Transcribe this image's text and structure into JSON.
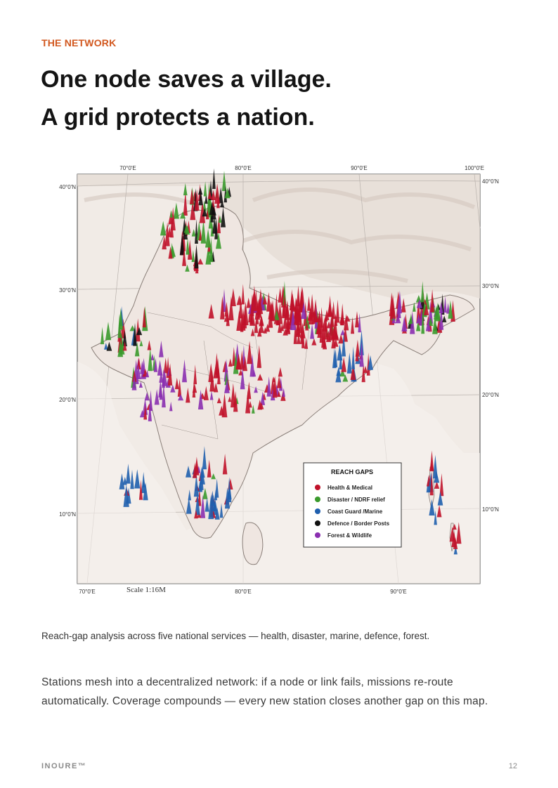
{
  "header": {
    "eyebrow": "THE NETWORK",
    "headline_line1": "One node saves a village.",
    "headline_line2": "A grid protects a nation."
  },
  "map": {
    "top_longitudes": [
      "70°0'E",
      "80°0'E",
      "90°0'E",
      "100°0'E"
    ],
    "bottom_longitudes": [
      "70°0'E",
      "80°0'E",
      "90°0'E"
    ],
    "left_latitudes": [
      "40°0'N",
      "30°0'N",
      "20°0'N",
      "10°0'N"
    ],
    "right_latitudes": [
      "40°0'N",
      "30°0'N",
      "20°0'N",
      "10°0'N"
    ],
    "scale": "Scale 1:16M",
    "legend": {
      "title": "REACH  GAPS",
      "items": [
        {
          "label": "Health & Medical",
          "color": "#c0122a"
        },
        {
          "label": "Disaster / NDRF relief",
          "color": "#3a9a2c"
        },
        {
          "label": "Coast Guard /Marine",
          "color": "#1f5fae"
        },
        {
          "label": "Defence / Border Posts",
          "color": "#111111"
        },
        {
          "label": "Forest & Wildlife",
          "color": "#8a2fb0"
        }
      ]
    }
  },
  "caption": "Reach-gap analysis across five national services — health, disaster, marine, defence, forest.",
  "body": "Stations mesh into a decentralized network: if a node or link fails, missions re-route automatically. Coverage compounds — every new station closes another gap on this map.",
  "footer": {
    "brand": "INOURE™",
    "page": "12"
  }
}
